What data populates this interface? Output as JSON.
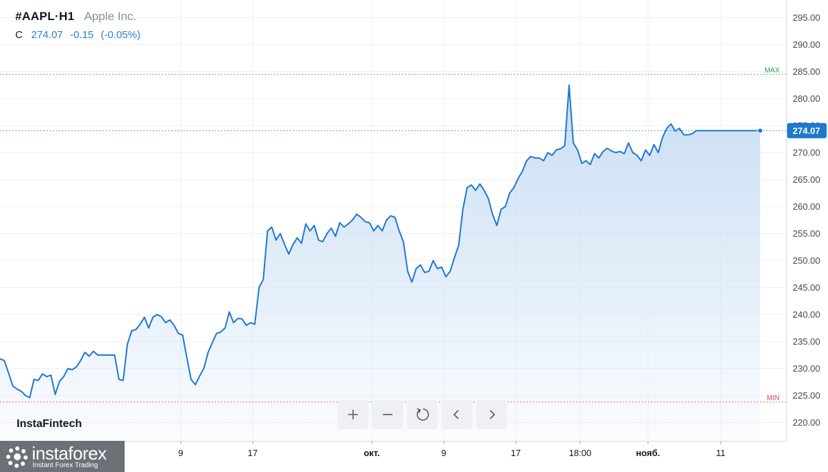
{
  "legend": {
    "symbol": "#AAPL",
    "separator": "·",
    "timeframe": "H1",
    "company": "Apple Inc.",
    "close_label": "C",
    "close_value": "274.07",
    "change": "-0.15",
    "change_pct": "(-0.05%)"
  },
  "brand": "InstaFintech",
  "logo": {
    "name": "instaforex",
    "tagline": "Instant Forex Trading"
  },
  "toolbar": [
    "zoom-in",
    "zoom-out",
    "reset",
    "scroll-left",
    "scroll-right"
  ],
  "colors": {
    "line": "#1f77d0",
    "area_top": "#c5dcf3",
    "max": "#2e9e4a",
    "min": "#d9434e",
    "price_tag": "#1e78cd"
  },
  "chart_data": {
    "type": "area",
    "ylim": [
      217,
      298
    ],
    "y_ticks": [
      "295.00",
      "290.00",
      "285.00",
      "280.00",
      "275.00",
      "270.00",
      "265.00",
      "260.00",
      "255.00",
      "250.00",
      "245.00",
      "240.00",
      "235.00",
      "230.00",
      "225.00",
      "220.00"
    ],
    "x_ticks": [
      "9",
      "17",
      "окт.",
      "9",
      "17",
      "18:00",
      "нояб.",
      "11"
    ],
    "current_price": 274.07,
    "current_label": "274.07",
    "max_label": "MAX",
    "max_value": 284.5,
    "min_label": "MIN",
    "min_value": 223.8,
    "series": [
      {
        "x": [
          0,
          1,
          2,
          3,
          4,
          5,
          6,
          7,
          8,
          9,
          10,
          11,
          12,
          13,
          14,
          15,
          16,
          17,
          18,
          19,
          20,
          21,
          22,
          23,
          24,
          25,
          26,
          27,
          28,
          29,
          30,
          31,
          32,
          33,
          34,
          35,
          36,
          37,
          38,
          39,
          40,
          41,
          42,
          43,
          44,
          45,
          46,
          47,
          48,
          49,
          50,
          51,
          52,
          53,
          54,
          55,
          56,
          57,
          58,
          59,
          60,
          61,
          62,
          63,
          64,
          65,
          66,
          67,
          68,
          69,
          70,
          71,
          72,
          73,
          74,
          75,
          76,
          77,
          78,
          79,
          80,
          81,
          82,
          83,
          84,
          85,
          86,
          87,
          88,
          89,
          90,
          91,
          92,
          93,
          94,
          95,
          96,
          97,
          98,
          99,
          100,
          101,
          102,
          103,
          104,
          105,
          106,
          107,
          108,
          109,
          110,
          111,
          112,
          113,
          114,
          115,
          116,
          117,
          118,
          119,
          120,
          121,
          122,
          123,
          124,
          125,
          126,
          127,
          128,
          129,
          130,
          131,
          132,
          133,
          134,
          135,
          136,
          137,
          138,
          139,
          140,
          141,
          142,
          143,
          144,
          145,
          146,
          147,
          148,
          149,
          150,
          151,
          152,
          153,
          154,
          155,
          156,
          157,
          158,
          159,
          160,
          161,
          162,
          163,
          164,
          165,
          166,
          167,
          168,
          169,
          170,
          171,
          172,
          173,
          174,
          175,
          176,
          177,
          178,
          179
        ],
        "values": [
          231.8,
          231.5,
          229.2,
          226.8,
          226.2,
          225.8,
          225.0,
          224.6,
          228.0,
          227.8,
          229.0,
          228.5,
          228.8,
          225.2,
          227.6,
          228.5,
          230.0,
          229.8,
          230.3,
          231.5,
          233.0,
          232.3,
          233.2,
          232.5,
          232.5,
          232.5,
          232.5,
          232.5,
          228.0,
          227.8,
          234.5,
          237.0,
          237.2,
          238.2,
          239.5,
          237.5,
          239.5,
          240.0,
          239.6,
          238.5,
          239.0,
          238.0,
          236.5,
          236.2,
          232.0,
          228.0,
          227.0,
          228.6,
          230.0,
          233.0,
          234.8,
          236.5,
          236.8,
          237.5,
          240.5,
          238.5,
          239.3,
          239.2,
          238.0,
          238.5,
          238.2,
          245.0,
          246.5,
          255.5,
          256.2,
          253.8,
          255.0,
          253.0,
          251.2,
          253.0,
          254.2,
          253.2,
          256.8,
          255.5,
          256.5,
          253.8,
          253.5,
          255.0,
          256.0,
          254.5,
          257.0,
          256.2,
          256.8,
          257.5,
          258.6,
          258.0,
          257.2,
          257.0,
          255.5,
          256.5,
          255.5,
          257.5,
          258.3,
          258.0,
          255.5,
          253.5,
          248.0,
          246.0,
          248.5,
          249.2,
          247.8,
          248.0,
          250.0,
          248.5,
          248.8,
          247.0,
          248.0,
          250.5,
          252.8,
          259.5,
          263.5,
          264.0,
          263.0,
          264.2,
          263.0,
          261.5,
          258.5,
          256.5,
          259.5,
          260.0,
          262.5,
          263.5,
          265.2,
          266.5,
          268.5,
          269.3,
          269.0,
          269.0,
          268.5,
          270.0,
          269.5,
          270.5,
          270.7,
          271.3,
          282.5,
          271.8,
          270.5,
          268.0,
          268.5,
          267.8,
          269.8,
          269.0,
          270.2,
          270.8,
          270.3,
          270.0,
          270.2,
          269.8,
          271.8,
          270.0,
          269.5,
          268.5,
          270.5,
          269.5,
          271.5,
          270.0,
          272.8,
          274.5,
          275.3,
          274.0,
          274.5,
          273.3,
          273.3,
          273.5,
          274.07,
          274.07,
          274.07,
          274.07,
          274.07,
          274.07,
          274.07,
          274.07,
          274.07,
          274.07,
          274.07,
          274.07,
          274.07,
          274.07,
          274.07,
          274.07
        ]
      }
    ]
  }
}
